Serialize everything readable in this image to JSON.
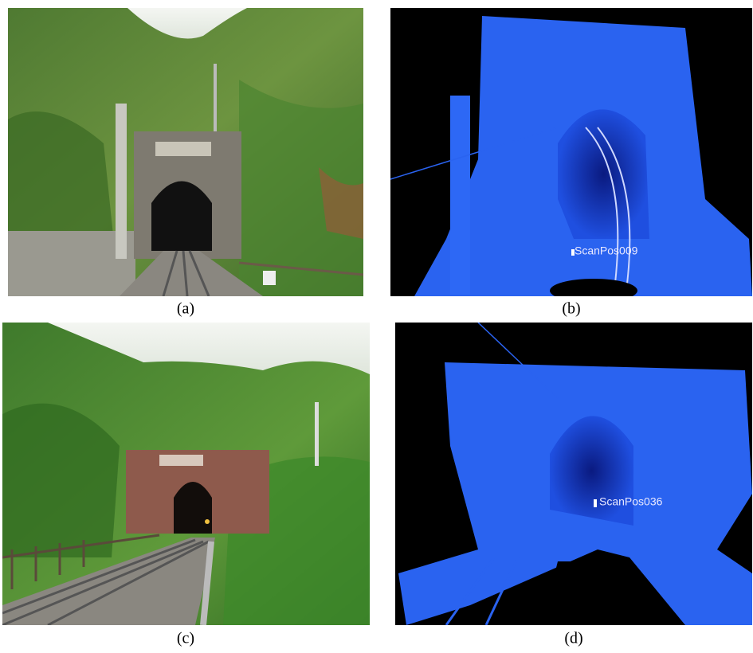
{
  "panels": [
    {
      "label": "(a)"
    },
    {
      "label": "(b)",
      "scan_label": "ScanPos009"
    },
    {
      "label": "(c)"
    },
    {
      "label": "(d)",
      "scan_label": "ScanPos036"
    }
  ]
}
